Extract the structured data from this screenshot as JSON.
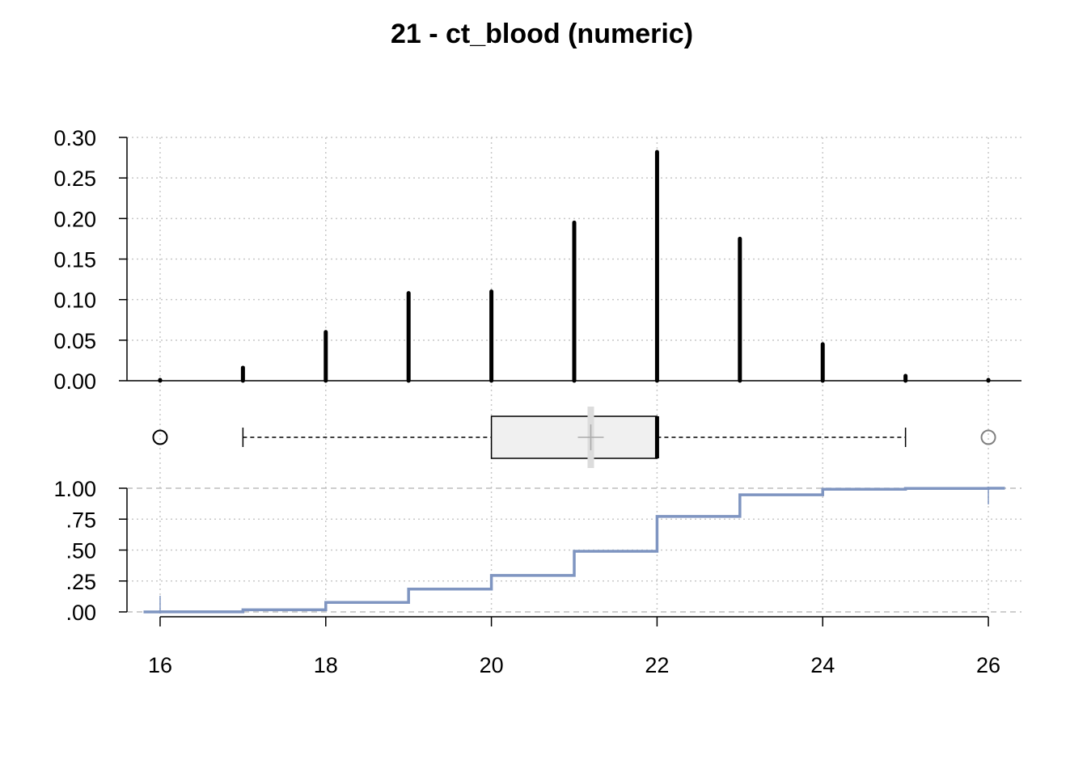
{
  "chart_data": {
    "title": "21 - ct_blood (numeric)",
    "x_ticks": [
      16,
      18,
      20,
      22,
      24,
      26
    ],
    "x_tick_labels": [
      "16",
      "18",
      "20",
      "22",
      "24",
      "26"
    ],
    "xlim": [
      15.6,
      26.4
    ],
    "panels": [
      {
        "type": "bar",
        "role": "relative-frequency",
        "x": [
          16,
          17,
          18,
          19,
          20,
          21,
          22,
          23,
          24,
          25,
          26
        ],
        "values": [
          0.001,
          0.016,
          0.06,
          0.108,
          0.11,
          0.195,
          0.282,
          0.175,
          0.045,
          0.006,
          0.001
        ],
        "ylim": [
          0,
          0.3
        ],
        "y_ticks": [
          0,
          0.05,
          0.1,
          0.15,
          0.2,
          0.25,
          0.3
        ],
        "y_tick_labels": [
          "0.00",
          "0.05",
          "0.10",
          "0.15",
          "0.20",
          "0.25",
          "0.30"
        ],
        "grid": true,
        "bar_color": "#000000"
      },
      {
        "type": "boxplot",
        "whisker_low": 17,
        "q1": 20,
        "median": 22,
        "q3": 22,
        "whisker_high": 25,
        "mean": 21.2,
        "outliers": [
          16,
          26
        ],
        "box_fill": "#f0f0f0",
        "mean_color": "#aaaaaa",
        "outlier_colors": [
          "#000000",
          "#808080"
        ]
      },
      {
        "type": "line",
        "role": "empirical-cdf",
        "step": true,
        "x": [
          15.8,
          16,
          17,
          18,
          19,
          20,
          21,
          22,
          23,
          24,
          25,
          26,
          26.2
        ],
        "values": [
          0,
          0.001,
          0.017,
          0.077,
          0.185,
          0.295,
          0.49,
          0.772,
          0.947,
          0.992,
          0.998,
          1.0,
          1.0
        ],
        "ylim": [
          0,
          1
        ],
        "y_ticks": [
          0,
          0.25,
          0.5,
          0.75,
          1.0
        ],
        "y_tick_labels": [
          ".00",
          ".25",
          ".50",
          ".75",
          "1.00"
        ],
        "grid": true,
        "line_color": "#7f95c1"
      }
    ]
  }
}
